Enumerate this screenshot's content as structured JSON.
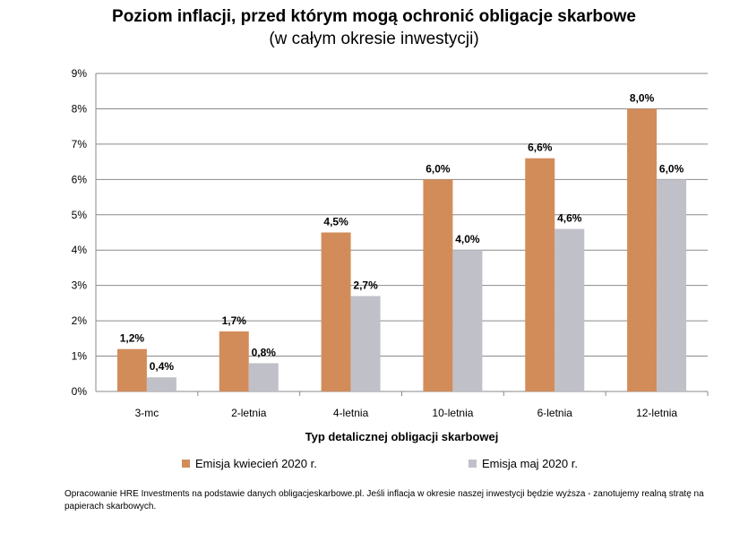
{
  "chart_data": {
    "type": "bar",
    "title": "Poziom inflacji, przed którym mogą ochronić obligacje skarbowe",
    "subtitle": "(w całym okresie inwestycji)",
    "xlabel": "Typ detalicznej obligacji skarbowej",
    "ylabel": "",
    "categories": [
      "3-mc",
      "2-letnia",
      "4-letnia",
      "10-letnia",
      "6-letnia",
      "12-letnia"
    ],
    "series": [
      {
        "name": "Emisja kwiecień 2020 r.",
        "color": "#D28C5A",
        "values": [
          1.2,
          1.7,
          4.5,
          6.0,
          6.6,
          8.0
        ],
        "labels": [
          "1,2%",
          "1,7%",
          "4,5%",
          "6,0%",
          "6,6%",
          "8,0%"
        ]
      },
      {
        "name": "Emisja maj 2020 r.",
        "color": "#C0C0C8",
        "values": [
          0.4,
          0.8,
          2.7,
          4.0,
          4.6,
          6.0
        ],
        "labels": [
          "0,4%",
          "0,8%",
          "2,7%",
          "4,0%",
          "4,6%",
          "6,0%"
        ]
      }
    ],
    "ylim": [
      0,
      9
    ],
    "yticks": [
      "0%",
      "1%",
      "2%",
      "3%",
      "4%",
      "5%",
      "6%",
      "7%",
      "8%",
      "9%"
    ],
    "grid": true,
    "legend_position": "bottom"
  },
  "footnote": "Opracowanie HRE Investments na podstawie danych obligacjeskarbowe.pl. Jeśli inflacja w okresie naszej inwestycji będzie wyższa - zanotujemy realną stratę na papierach skarbowych."
}
